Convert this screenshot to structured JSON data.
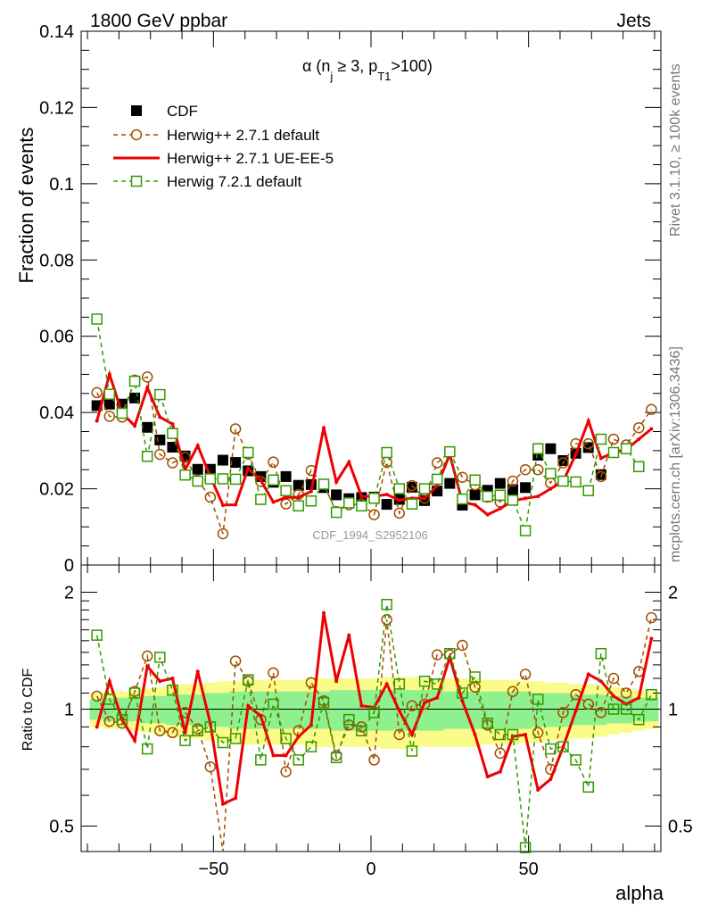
{
  "header": {
    "left": "1800 GeV ppbar",
    "right": "Jets"
  },
  "side_labels": {
    "top": "Rivet 3.1.10, ≥ 100k events",
    "bottom": "mcplots.cern.ch [arXiv:1306.3436]"
  },
  "chart_data": [
    {
      "type": "line",
      "title": {
        "main": "α (n",
        "sub_j": "j",
        "mid": " ≥ 3, p",
        "sub_t": "T1",
        "end": ">100)"
      },
      "watermark": "CDF_1994_S2952106",
      "xlabel": "alpha",
      "ylabel": "Fraction of events",
      "xlim": [
        -92,
        92
      ],
      "ylim": [
        0,
        0.14
      ],
      "xticks": [
        -50,
        0,
        50
      ],
      "yticks": [
        0,
        0.02,
        0.04,
        0.06,
        0.08,
        0.1,
        0.12,
        0.14
      ],
      "ytick_labels": [
        "0",
        "0.02",
        "0.04",
        "0.06",
        "0.08",
        "0.1",
        "0.12",
        "0.14"
      ],
      "legend_position": "top-left",
      "x": [
        -87,
        -83,
        -79,
        -75,
        -71,
        -67,
        -63,
        -59,
        -55,
        -51,
        -47,
        -43,
        -39,
        -35,
        -31,
        -27,
        -23,
        -19,
        -15,
        -11,
        -7,
        -3,
        1,
        5,
        9,
        13,
        17,
        21,
        25,
        29,
        33,
        37,
        41,
        45,
        49,
        53,
        57,
        61,
        65,
        69,
        73,
        77,
        81,
        85,
        89
      ],
      "series": [
        {
          "name": "CDF",
          "style": "data",
          "color": "#000000",
          "values": [
            0.0418,
            0.0422,
            0.0422,
            0.0438,
            0.0361,
            0.0328,
            0.0309,
            0.0286,
            0.0251,
            0.0251,
            0.0275,
            0.0269,
            0.0247,
            0.0232,
            0.0217,
            0.0232,
            0.0209,
            0.0211,
            0.0203,
            0.0184,
            0.0174,
            0.0177,
            0.0178,
            0.0159,
            0.0172,
            0.0204,
            0.0169,
            0.0194,
            0.0214,
            0.0157,
            0.0184,
            0.0196,
            0.0214,
            0.0198,
            0.0203,
            0.0288,
            0.0305,
            0.0274,
            0.0293,
            0.0308,
            0.0237,
            0.0,
            0.0,
            0.0,
            0.0
          ]
        },
        {
          "name": "Herwig++ 2.7.1 default",
          "style": "circle-dashed",
          "color": "#a05000",
          "values": [
            0.0452,
            0.039,
            0.0388,
            0.0485,
            0.0493,
            0.029,
            0.0268,
            0.0282,
            0.0222,
            0.0178,
            0.0082,
            0.0357,
            0.0291,
            0.0219,
            0.027,
            0.016,
            0.0185,
            0.0248,
            0.0212,
            0.014,
            0.0158,
            0.016,
            0.0132,
            0.027,
            0.0136,
            0.0208,
            0.0175,
            0.0268,
            0.0296,
            0.023,
            0.021,
            0.0178,
            0.0165,
            0.022,
            0.025,
            0.025,
            0.0215,
            0.0268,
            0.0318,
            0.0318,
            0.0232,
            0.033,
            0.0315,
            0.036,
            0.0408
          ]
        },
        {
          "name": "Herwig++ 2.7.1 UE-EE-5",
          "style": "solid",
          "color": "#ee0000",
          "values": [
            0.0378,
            0.05,
            0.0398,
            0.0365,
            0.0465,
            0.0388,
            0.037,
            0.025,
            0.0313,
            0.0232,
            0.0157,
            0.0158,
            0.0253,
            0.0222,
            0.0165,
            0.0177,
            0.0178,
            0.0193,
            0.036,
            0.0218,
            0.027,
            0.018,
            0.018,
            0.0185,
            0.017,
            0.0175,
            0.0175,
            0.0208,
            0.029,
            0.0165,
            0.0158,
            0.0132,
            0.0148,
            0.0168,
            0.0175,
            0.018,
            0.02,
            0.022,
            0.029,
            0.0378,
            0.028,
            0.0295,
            0.0303,
            0.033,
            0.0357
          ]
        },
        {
          "name": "Herwig 7.2.1 default",
          "style": "square-dashed",
          "color": "#339900",
          "values": [
            0.0645,
            0.0448,
            0.0398,
            0.0482,
            0.0285,
            0.0447,
            0.0345,
            0.0236,
            0.022,
            0.0226,
            0.0226,
            0.0225,
            0.0295,
            0.0172,
            0.0223,
            0.0195,
            0.0155,
            0.0168,
            0.0212,
            0.0138,
            0.0163,
            0.0155,
            0.0175,
            0.0295,
            0.02,
            0.016,
            0.02,
            0.0225,
            0.0297,
            0.0173,
            0.0223,
            0.018,
            0.0183,
            0.017,
            0.009,
            0.0305,
            0.024,
            0.022,
            0.0218,
            0.0195,
            0.033,
            0.0295,
            0.0305,
            0.0258,
            0.0
          ]
        }
      ]
    },
    {
      "type": "line",
      "ylabel": "Ratio to CDF",
      "ylim": [
        0.43,
        2.35
      ],
      "log_y": true,
      "yticks": [
        0.5,
        1,
        2
      ],
      "ytick_labels": [
        "0.5",
        "1",
        "2"
      ],
      "xticks": [
        -50,
        0,
        50
      ],
      "xtick_labels": [
        "−50",
        "0",
        "50"
      ],
      "reference_line": 1,
      "band_green_halfwidth": [
        0.06,
        0.07,
        0.07,
        0.07,
        0.08,
        0.08,
        0.09,
        0.09,
        0.09,
        0.1,
        0.1,
        0.11,
        0.11,
        0.11,
        0.11,
        0.11,
        0.11,
        0.11,
        0.11,
        0.12,
        0.12,
        0.12,
        0.12,
        0.12,
        0.12,
        0.12,
        0.12,
        0.12,
        0.11,
        0.11,
        0.11,
        0.11,
        0.11,
        0.11,
        0.11,
        0.1,
        0.1,
        0.1,
        0.09,
        0.09,
        0.09,
        0.08,
        0.08,
        0.07,
        0.07
      ],
      "band_yellow_halfwidth": [
        0.1,
        0.11,
        0.11,
        0.12,
        0.13,
        0.14,
        0.15,
        0.16,
        0.16,
        0.17,
        0.18,
        0.18,
        0.19,
        0.19,
        0.19,
        0.19,
        0.19,
        0.2,
        0.2,
        0.2,
        0.2,
        0.2,
        0.2,
        0.21,
        0.21,
        0.21,
        0.2,
        0.2,
        0.2,
        0.2,
        0.2,
        0.19,
        0.19,
        0.19,
        0.18,
        0.18,
        0.17,
        0.17,
        0.16,
        0.16,
        0.15,
        0.14,
        0.13,
        0.12,
        0.11
      ],
      "series": [
        {
          "name": "Herwig++ 2.7.1 default",
          "color": "#a05000",
          "values": [
            1.08,
            0.93,
            0.92,
            1.11,
            1.37,
            0.88,
            0.87,
            0.98,
            0.89,
            0.71,
            0.3,
            1.33,
            1.18,
            0.94,
            1.24,
            0.69,
            0.88,
            1.17,
            1.05,
            0.76,
            0.91,
            0.9,
            0.74,
            1.7,
            0.86,
            1.02,
            1.03,
            1.38,
            1.38,
            1.46,
            1.14,
            0.91,
            0.77,
            1.11,
            1.23,
            0.87,
            0.7,
            0.98,
            1.09,
            1.03,
            0.98,
            1.2,
            1.1,
            1.25,
            1.72
          ]
        },
        {
          "name": "Herwig++ 2.7.1 UE-EE-5",
          "color": "#ee0000",
          "values": [
            0.9,
            1.18,
            0.94,
            0.83,
            1.29,
            1.18,
            1.2,
            0.87,
            1.25,
            0.92,
            0.57,
            0.59,
            1.02,
            0.96,
            0.76,
            0.76,
            0.85,
            0.91,
            1.77,
            1.18,
            1.55,
            1.02,
            1.01,
            1.16,
            0.99,
            0.86,
            1.04,
            1.07,
            1.36,
            1.05,
            0.86,
            0.67,
            0.69,
            0.85,
            0.86,
            0.62,
            0.66,
            0.8,
            0.99,
            1.23,
            1.18,
            1.08,
            1.03,
            1.07,
            1.52
          ]
        },
        {
          "name": "Herwig 7.2.1 default",
          "color": "#339900",
          "values": [
            1.55,
            1.06,
            0.94,
            1.1,
            0.79,
            1.36,
            1.12,
            0.83,
            0.88,
            0.9,
            0.82,
            0.84,
            1.19,
            0.74,
            1.03,
            0.84,
            0.74,
            0.8,
            1.04,
            0.75,
            0.94,
            0.88,
            0.98,
            1.86,
            1.16,
            0.78,
            1.18,
            1.16,
            1.39,
            1.1,
            1.21,
            0.92,
            0.86,
            0.86,
            0.44,
            1.06,
            0.79,
            0.8,
            0.74,
            0.63,
            1.39,
            1.0,
            1.0,
            0.94,
            1.09
          ]
        }
      ]
    }
  ]
}
